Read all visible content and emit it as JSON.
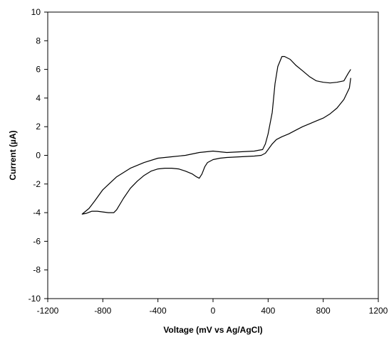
{
  "chart_data": {
    "type": "line",
    "title": "",
    "xlabel": "Voltage (mV vs Ag/AgCl)",
    "ylabel": "Current (µA)",
    "xlim": [
      -1200,
      1200
    ],
    "ylim": [
      -10,
      10
    ],
    "xticks": [
      -1200,
      -800,
      -400,
      0,
      400,
      800,
      1200
    ],
    "yticks": [
      -10,
      -8,
      -6,
      -4,
      -2,
      0,
      2,
      4,
      6,
      8,
      10
    ],
    "xtick_labels": [
      "-1200",
      "-800",
      "-400",
      "0",
      "400",
      "800",
      "1200"
    ],
    "ytick_labels": [
      "-10",
      "-8",
      "-6",
      "-4",
      "-2",
      "0",
      "2",
      "4",
      "6",
      "8",
      "10"
    ],
    "grid": false,
    "legend": "none",
    "line_color": "#000000",
    "series": [
      {
        "values_x": [
          1000,
          980,
          950,
          900,
          850,
          800,
          750,
          700,
          650,
          600,
          560,
          520,
          500,
          470,
          450,
          430,
          400,
          380,
          360,
          330,
          300,
          200,
          100,
          50,
          0,
          -50,
          -100,
          -200,
          -300,
          -400,
          -500,
          -600,
          -700,
          -800,
          -860,
          -900,
          -950,
          -920,
          -880,
          -840,
          -800,
          -760,
          -720,
          -700,
          -650,
          -600,
          -550,
          -500,
          -450,
          -400,
          -350,
          -300,
          -250,
          -200,
          -150,
          -120,
          -100,
          -80,
          -60,
          -40,
          0,
          50,
          100,
          200,
          300,
          350,
          380,
          400,
          430,
          460,
          500,
          550,
          600,
          650,
          700,
          750,
          800,
          850,
          900,
          950,
          990,
          1000
        ],
        "values_y": [
          6.0,
          5.7,
          5.2,
          5.1,
          5.05,
          5.1,
          5.2,
          5.5,
          5.9,
          6.3,
          6.7,
          6.9,
          6.9,
          6.2,
          5.0,
          3.0,
          1.5,
          0.8,
          0.4,
          0.35,
          0.3,
          0.25,
          0.2,
          0.25,
          0.3,
          0.25,
          0.2,
          0.0,
          -0.1,
          -0.2,
          -0.5,
          -0.9,
          -1.5,
          -2.4,
          -3.2,
          -3.7,
          -4.1,
          -4.05,
          -3.9,
          -3.9,
          -3.95,
          -4.0,
          -4.0,
          -3.8,
          -3.0,
          -2.3,
          -1.8,
          -1.4,
          -1.1,
          -0.95,
          -0.9,
          -0.9,
          -0.95,
          -1.1,
          -1.3,
          -1.5,
          -1.6,
          -1.3,
          -0.8,
          -0.5,
          -0.3,
          -0.2,
          -0.15,
          -0.1,
          -0.05,
          0.0,
          0.15,
          0.4,
          0.8,
          1.1,
          1.3,
          1.5,
          1.75,
          2.0,
          2.2,
          2.4,
          2.6,
          2.9,
          3.3,
          3.9,
          4.7,
          5.4
        ]
      }
    ]
  }
}
